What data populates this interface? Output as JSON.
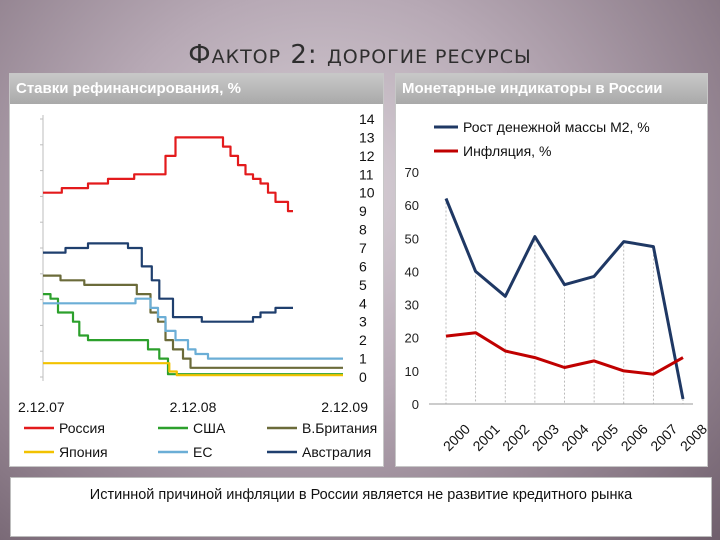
{
  "slide": {
    "title_first": "Ф",
    "title_rest_1": "АКТОР",
    "title_num": "2:",
    "title_rest_2": "ДОРОГИЕ РЕСУРСЫ",
    "caption": "Истинной причиной инфляции в России является не развитие кредитного рынка"
  },
  "chart_data": [
    {
      "type": "line",
      "title": "Ставки рефинансирования, %",
      "x_ticks": [
        "2.12.07",
        "2.12.08",
        "2.12.09"
      ],
      "x_range": [
        0,
        24
      ],
      "ylim": [
        0,
        14
      ],
      "y_ticks": [
        0,
        1,
        2,
        3,
        4,
        5,
        6,
        7,
        8,
        9,
        10,
        11,
        12,
        13,
        14
      ],
      "y_axis_side": "right",
      "legend_position": "bottom",
      "step": true,
      "series": [
        {
          "name": "Россия",
          "color": "#e31a1c",
          "points": [
            [
              0,
              10
            ],
            [
              1.5,
              10
            ],
            [
              1.5,
              10.25
            ],
            [
              3.6,
              10.25
            ],
            [
              3.6,
              10.5
            ],
            [
              5.2,
              10.5
            ],
            [
              5.2,
              10.75
            ],
            [
              7.3,
              10.75
            ],
            [
              7.3,
              11
            ],
            [
              9.8,
              11
            ],
            [
              9.8,
              12
            ],
            [
              10.6,
              12
            ],
            [
              10.6,
              13
            ],
            [
              14.4,
              13
            ],
            [
              14.4,
              12.5
            ],
            [
              15,
              12.5
            ],
            [
              15,
              12
            ],
            [
              15.6,
              12
            ],
            [
              15.6,
              11.5
            ],
            [
              16.2,
              11.5
            ],
            [
              16.2,
              11
            ],
            [
              16.8,
              11
            ],
            [
              16.8,
              10.75
            ],
            [
              17.4,
              10.75
            ],
            [
              17.4,
              10.5
            ],
            [
              18,
              10.5
            ],
            [
              18,
              10
            ],
            [
              18.6,
              10
            ],
            [
              18.6,
              9.5
            ],
            [
              19.6,
              9.5
            ],
            [
              19.6,
              9
            ],
            [
              20,
              9
            ]
          ]
        },
        {
          "name": "США",
          "color": "#2ca02c",
          "points": [
            [
              0,
              4.5
            ],
            [
              0.6,
              4.5
            ],
            [
              0.6,
              4.25
            ],
            [
              1.2,
              4.25
            ],
            [
              1.2,
              3.5
            ],
            [
              2.4,
              3.5
            ],
            [
              2.4,
              3
            ],
            [
              2.9,
              3
            ],
            [
              2.9,
              2.25
            ],
            [
              3.6,
              2.25
            ],
            [
              3.6,
              2
            ],
            [
              8.4,
              2
            ],
            [
              8.4,
              1.5
            ],
            [
              9.3,
              1.5
            ],
            [
              9.3,
              1
            ],
            [
              10,
              1
            ],
            [
              10,
              0.15
            ],
            [
              24,
              0.15
            ]
          ]
        },
        {
          "name": "В.Британия",
          "color": "#6b6b3a",
          "points": [
            [
              0,
              5.5
            ],
            [
              1.4,
              5.5
            ],
            [
              1.4,
              5.25
            ],
            [
              3.3,
              5.25
            ],
            [
              3.3,
              5
            ],
            [
              7.5,
              5
            ],
            [
              7.5,
              4.5
            ],
            [
              8.6,
              4.5
            ],
            [
              8.6,
              3.5
            ],
            [
              9.2,
              3.5
            ],
            [
              9.2,
              3
            ],
            [
              9.8,
              3
            ],
            [
              9.8,
              2
            ],
            [
              10.4,
              2
            ],
            [
              10.4,
              1.5
            ],
            [
              11.2,
              1.5
            ],
            [
              11.2,
              1
            ],
            [
              11.8,
              1
            ],
            [
              11.8,
              0.5
            ],
            [
              24,
              0.5
            ]
          ]
        },
        {
          "name": "Япония",
          "color": "#f2c200",
          "points": [
            [
              0,
              0.75
            ],
            [
              10.1,
              0.75
            ],
            [
              10.1,
              0.3
            ],
            [
              10.7,
              0.3
            ],
            [
              10.7,
              0.1
            ],
            [
              24,
              0.1
            ]
          ]
        },
        {
          "name": "ЕС",
          "color": "#6baed6",
          "points": [
            [
              0,
              4
            ],
            [
              7.4,
              4
            ],
            [
              7.4,
              4.25
            ],
            [
              8.6,
              4.25
            ],
            [
              8.6,
              3.75
            ],
            [
              9.2,
              3.75
            ],
            [
              9.2,
              3.25
            ],
            [
              9.8,
              3.25
            ],
            [
              9.8,
              2.5
            ],
            [
              10.6,
              2.5
            ],
            [
              10.6,
              2
            ],
            [
              11.6,
              2
            ],
            [
              11.6,
              1.5
            ],
            [
              12.2,
              1.5
            ],
            [
              12.2,
              1.25
            ],
            [
              13.2,
              1.25
            ],
            [
              13.2,
              1
            ],
            [
              24,
              1
            ]
          ]
        },
        {
          "name": "Австралия",
          "color": "#1f3f6e",
          "points": [
            [
              0,
              6.75
            ],
            [
              1.8,
              6.75
            ],
            [
              1.8,
              7
            ],
            [
              3.6,
              7
            ],
            [
              3.6,
              7.25
            ],
            [
              6.8,
              7.25
            ],
            [
              6.8,
              7
            ],
            [
              7.9,
              7
            ],
            [
              7.9,
              6
            ],
            [
              8.7,
              6
            ],
            [
              8.7,
              5.25
            ],
            [
              9.3,
              5.25
            ],
            [
              9.3,
              4.25
            ],
            [
              10.4,
              4.25
            ],
            [
              10.4,
              3.25
            ],
            [
              12.7,
              3.25
            ],
            [
              12.7,
              3
            ],
            [
              16.8,
              3
            ],
            [
              16.8,
              3.25
            ],
            [
              17.4,
              3.25
            ],
            [
              17.4,
              3.5
            ],
            [
              18.6,
              3.5
            ],
            [
              18.6,
              3.75
            ],
            [
              20,
              3.75
            ]
          ]
        }
      ]
    },
    {
      "type": "line",
      "title": "Монетарные индикаторы в России",
      "categories": [
        "2000",
        "2001",
        "2002",
        "2003",
        "2004",
        "2005",
        "2006",
        "2007",
        "2008"
      ],
      "ylim": [
        0,
        70
      ],
      "y_ticks": [
        0,
        10,
        20,
        30,
        40,
        50,
        60,
        70
      ],
      "grid": "vertical dashed drop lines",
      "legend_position": "top",
      "series": [
        {
          "name": "Рост денежной массы М2, %",
          "color": "#1f3864",
          "values": [
            62,
            40,
            32.5,
            50.5,
            36,
            38.5,
            49,
            47.5,
            1.5
          ]
        },
        {
          "name": "Инфляция, %",
          "color": "#c00000",
          "values": [
            20.5,
            21.5,
            16,
            14,
            11,
            13,
            10,
            9,
            14
          ]
        }
      ]
    }
  ]
}
